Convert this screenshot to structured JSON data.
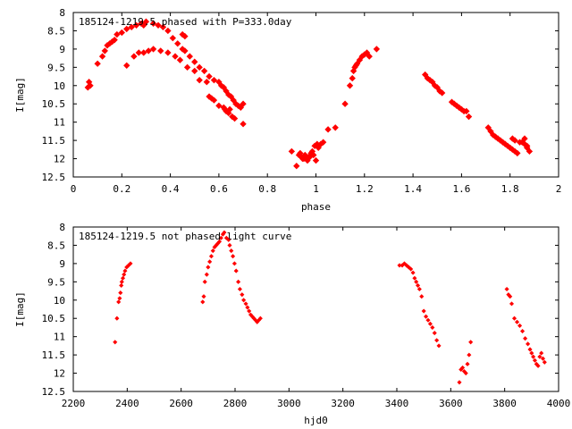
{
  "chart_data": [
    {
      "type": "scatter",
      "title": "185124-1219.5 phased with P=333.0day",
      "xlabel": "phase",
      "ylabel": "I[mag]",
      "xlim": [
        0,
        2
      ],
      "ylim": [
        12.5,
        8
      ],
      "y_inverted": true,
      "x_ticks": [
        "0",
        "0.2",
        "0.4",
        "0.6",
        "0.8",
        "1",
        "1.2",
        "1.4",
        "1.6",
        "1.8",
        "2"
      ],
      "y_ticks": [
        "8",
        "8.5",
        "9",
        "9.5",
        "10",
        "10.5",
        "11",
        "11.5",
        "12",
        "12.5"
      ],
      "marker_color": "#ff0000",
      "series": [
        {
          "x": [
            0.06,
            0.065,
            0.07,
            0.1,
            0.12,
            0.13,
            0.14,
            0.15,
            0.16,
            0.17,
            0.18,
            0.2,
            0.22,
            0.24,
            0.26,
            0.28,
            0.29,
            0.3,
            0.33,
            0.35,
            0.37,
            0.39,
            0.41,
            0.43,
            0.45,
            0.46,
            0.48,
            0.5,
            0.52,
            0.54,
            0.56,
            0.58,
            0.6,
            0.61,
            0.62,
            0.63,
            0.64,
            0.65,
            0.66,
            0.67,
            0.68,
            0.69,
            0.7,
            0.22,
            0.25,
            0.27,
            0.29,
            0.31,
            0.33,
            0.36,
            0.39,
            0.42,
            0.44,
            0.47,
            0.5,
            0.55,
            0.56,
            0.57,
            0.58,
            0.6,
            0.62,
            0.625,
            0.63,
            0.64,
            0.645,
            0.655,
            0.665,
            0.7,
            0.52,
            0.45,
            0.46,
            0.9,
            0.92,
            0.93,
            0.94,
            0.95,
            0.96,
            0.97,
            0.98,
            0.99,
            1.0,
            1.01,
            1.02,
            1.03,
            1.05,
            1.08,
            1.12,
            1.14,
            1.15,
            1.155,
            1.16,
            1.165,
            1.17,
            1.18,
            1.19,
            1.2,
            1.21,
            1.22,
            1.25,
            0.935,
            0.945,
            0.955,
            0.965,
            0.975,
            0.985,
            0.995,
            1.005,
            1.45,
            1.46,
            1.47,
            1.48,
            1.49,
            1.5,
            1.51,
            1.52,
            1.56,
            1.57,
            1.58,
            1.59,
            1.6,
            1.61,
            1.62,
            1.63,
            1.71,
            1.72,
            1.73,
            1.74,
            1.75,
            1.76,
            1.77,
            1.78,
            1.79,
            1.8,
            1.81,
            1.82,
            1.83,
            1.84,
            1.85,
            1.86,
            1.87,
            1.88,
            1.81,
            1.82,
            1.86,
            1.87
          ],
          "y": [
            10.05,
            9.9,
            10.0,
            9.4,
            9.2,
            9.05,
            8.9,
            8.85,
            8.8,
            8.75,
            8.6,
            8.55,
            8.45,
            8.4,
            8.35,
            8.3,
            8.35,
            8.25,
            8.3,
            8.35,
            8.4,
            8.5,
            8.7,
            8.85,
            9.0,
            9.05,
            9.2,
            9.35,
            9.5,
            9.6,
            9.75,
            9.85,
            9.9,
            10.0,
            10.05,
            10.15,
            10.25,
            10.3,
            10.4,
            10.5,
            10.55,
            10.6,
            10.5,
            9.45,
            9.2,
            9.1,
            9.1,
            9.05,
            9.0,
            9.05,
            9.1,
            9.2,
            9.3,
            9.5,
            9.6,
            9.9,
            10.3,
            10.35,
            10.4,
            10.55,
            10.6,
            10.65,
            10.7,
            10.75,
            10.65,
            10.85,
            10.9,
            11.05,
            9.85,
            8.6,
            8.65,
            11.8,
            12.2,
            11.9,
            11.95,
            12.0,
            12.0,
            11.95,
            11.85,
            11.9,
            12.05,
            11.7,
            11.6,
            11.55,
            11.2,
            11.15,
            10.5,
            10.0,
            9.8,
            9.6,
            9.5,
            9.45,
            9.4,
            9.3,
            9.2,
            9.15,
            9.1,
            9.2,
            9.0,
            11.85,
            12.0,
            11.9,
            12.05,
            11.95,
            11.8,
            11.65,
            11.6,
            9.7,
            9.8,
            9.85,
            9.9,
            10.0,
            10.05,
            10.15,
            10.2,
            10.45,
            10.5,
            10.55,
            10.6,
            10.65,
            10.7,
            10.7,
            10.85,
            11.15,
            11.25,
            11.35,
            11.4,
            11.45,
            11.5,
            11.55,
            11.6,
            11.65,
            11.7,
            11.75,
            11.8,
            11.85,
            11.55,
            11.55,
            11.6,
            11.7,
            11.8,
            11.45,
            11.5,
            11.45,
            11.65
          ]
        }
      ]
    },
    {
      "type": "scatter",
      "title": "185124-1219.5 not phased light curve",
      "xlabel": "hjd0",
      "ylabel": "I[mag]",
      "xlim": [
        2200,
        4000
      ],
      "ylim": [
        12.5,
        8
      ],
      "y_inverted": true,
      "x_ticks": [
        "2200",
        "2400",
        "2600",
        "2800",
        "3000",
        "3200",
        "3400",
        "3600",
        "3800",
        "4000"
      ],
      "y_ticks": [
        "8",
        "8.5",
        "9",
        "9.5",
        "10",
        "10.5",
        "11",
        "11.5",
        "12",
        "12.5"
      ],
      "marker_color": "#ff0000",
      "series": [
        {
          "x": [
            2355,
            2362,
            2368,
            2372,
            2375,
            2378,
            2380,
            2384,
            2388,
            2392,
            2398,
            2405,
            2412,
            2680,
            2684,
            2688,
            2695,
            2700,
            2706,
            2712,
            2718,
            2724,
            2730,
            2736,
            2742,
            2748,
            2755,
            2760,
            2768,
            2776,
            2780,
            2786,
            2792,
            2798,
            2804,
            2812,
            2818,
            2826,
            2832,
            2840,
            2846,
            2852,
            2858,
            2864,
            2870,
            2876,
            2882,
            2888,
            2894,
            3410,
            3420,
            3428,
            3436,
            3444,
            3452,
            3460,
            3466,
            3472,
            3478,
            3484,
            3492,
            3500,
            3508,
            3516,
            3524,
            3532,
            3540,
            3548,
            3556,
            3632,
            3638,
            3644,
            3650,
            3656,
            3662,
            3668,
            3674,
            3808,
            3814,
            3820,
            3826,
            3836,
            3846,
            3856,
            3866,
            3876,
            3886,
            3894,
            3900,
            3906,
            3912,
            3918,
            3924,
            3930,
            3936,
            3942,
            3948
          ],
          "y": [
            11.15,
            10.5,
            10.05,
            9.95,
            9.8,
            9.6,
            9.5,
            9.4,
            9.3,
            9.2,
            9.1,
            9.05,
            9.0,
            10.05,
            9.9,
            9.5,
            9.3,
            9.1,
            8.95,
            8.8,
            8.65,
            8.55,
            8.5,
            8.45,
            8.4,
            8.3,
            8.2,
            8.15,
            8.3,
            8.35,
            8.5,
            8.65,
            8.8,
            9.0,
            9.2,
            9.5,
            9.7,
            9.85,
            10.0,
            10.1,
            10.2,
            10.3,
            10.4,
            10.45,
            10.5,
            10.55,
            10.6,
            10.55,
            10.5,
            9.05,
            9.05,
            9.0,
            9.05,
            9.1,
            9.15,
            9.25,
            9.4,
            9.5,
            9.6,
            9.7,
            9.9,
            10.3,
            10.45,
            10.55,
            10.65,
            10.75,
            10.9,
            11.1,
            11.25,
            12.25,
            11.9,
            11.85,
            11.95,
            12.0,
            11.75,
            11.5,
            11.15,
            9.7,
            9.85,
            9.9,
            10.1,
            10.5,
            10.6,
            10.7,
            10.85,
            11.05,
            11.2,
            11.35,
            11.45,
            11.55,
            11.65,
            11.75,
            11.8,
            11.55,
            11.45,
            11.6,
            11.7
          ]
        }
      ]
    }
  ]
}
